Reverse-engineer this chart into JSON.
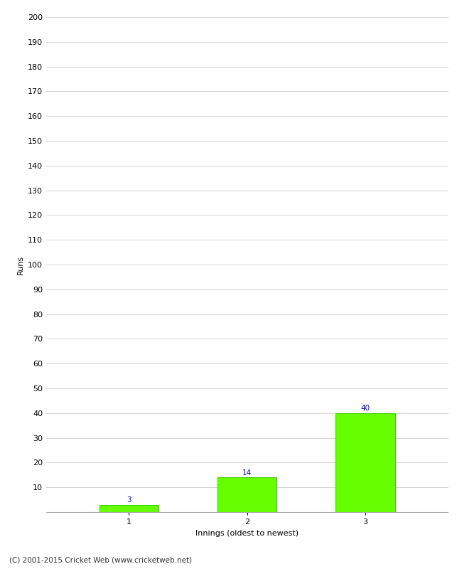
{
  "categories": [
    "1",
    "2",
    "3"
  ],
  "values": [
    3,
    14,
    40
  ],
  "bar_color": "#66ff00",
  "bar_edgecolor": "#44cc00",
  "xlabel": "Innings (oldest to newest)",
  "ylabel": "Runs",
  "ylim": [
    0,
    200
  ],
  "yticks": [
    0,
    10,
    20,
    30,
    40,
    50,
    60,
    70,
    80,
    90,
    100,
    110,
    120,
    130,
    140,
    150,
    160,
    170,
    180,
    190,
    200
  ],
  "label_color": "#0000cc",
  "label_fontsize": 7.5,
  "axis_fontsize": 8,
  "tick_fontsize": 8,
  "footer_text": "(C) 2001-2015 Cricket Web (www.cricketweb.net)",
  "footer_fontsize": 7.5,
  "background_color": "#ffffff",
  "grid_color": "#cccccc",
  "bar_width": 0.5
}
